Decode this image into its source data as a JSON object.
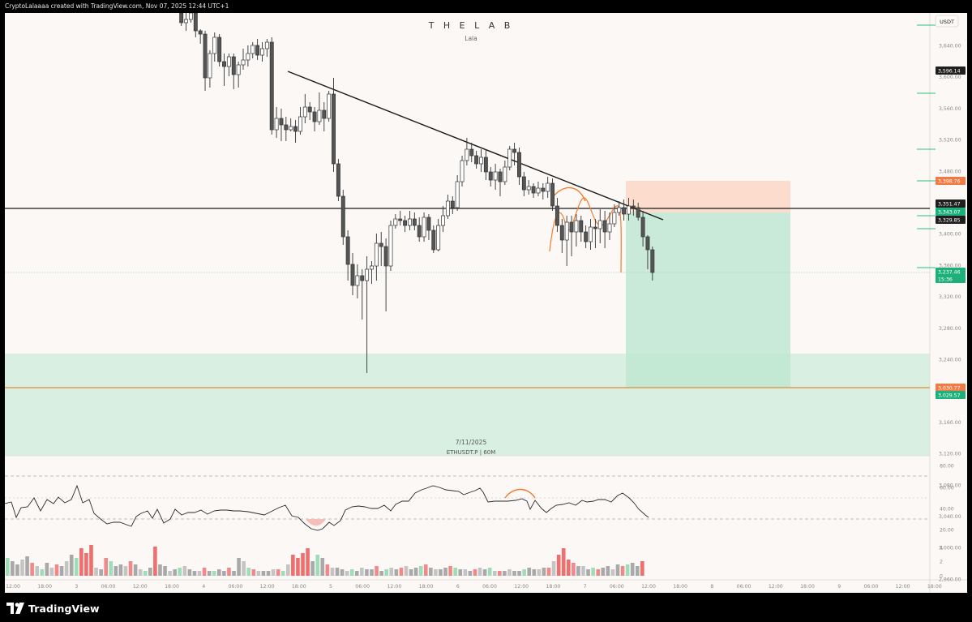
{
  "header": {
    "author_line": "CryptoLalaaaa created with TradingView.com, Nov 07, 2025 12:44 UTC+1"
  },
  "chart": {
    "watermark_title": "T H E  L A B",
    "watermark_sub": "Lala",
    "watermark_date": "7/11/2025",
    "watermark_symbol": "ETHUSDT.P | 60M",
    "currency": "USDT"
  },
  "price_axis": {
    "ticks": [
      "3,640.00",
      "3,600.00",
      "3,560.00",
      "3,520.00",
      "3,480.00",
      "3,440.00",
      "3,400.00",
      "3,360.00",
      "3,320.00",
      "3,280.00",
      "3,240.00",
      "3,200.00",
      "3,160.00",
      "3,120.00",
      "3,080.00",
      "3,040.00",
      "3,000.00",
      "2,960.00",
      "2,920.00"
    ],
    "labels": [
      {
        "text": "3,596.14",
        "color": "#1f1f1f"
      },
      {
        "text": "3,398.76",
        "color": "#f27a44"
      },
      {
        "text": "3,351.47",
        "color": "#1f1f1f"
      },
      {
        "text": "3,343.07",
        "color": "#1eb07a"
      },
      {
        "text": "3,329.85",
        "color": "#1f1f1f"
      },
      {
        "text": "3,237.46",
        "color": "#1eb07a"
      },
      {
        "text": "15:36",
        "color": "#1eb07a"
      },
      {
        "text": "3,030.77",
        "color": "#f27a44"
      },
      {
        "text": "3,029.57",
        "color": "#1eb07a"
      }
    ]
  },
  "rsi_axis": {
    "ticks": [
      "80.00",
      "60.00",
      "40.00",
      "20.00"
    ]
  },
  "volume_axis": {
    "ticks": [
      "4",
      "2",
      "0"
    ]
  },
  "time_axis": {
    "ticks": [
      "12:00",
      "18:00",
      "3",
      "06:00",
      "12:00",
      "18:00",
      "4",
      "06:00",
      "12:00",
      "18:00",
      "5",
      "06:00",
      "12:00",
      "18:00",
      "6",
      "06:00",
      "12:00",
      "18:00",
      "7",
      "06:00",
      "12:00",
      "18:00",
      "8",
      "06:00",
      "12:00",
      "18:00",
      "9",
      "06:00",
      "12:00",
      "18:00"
    ]
  },
  "footer": {
    "brand": "TradingView"
  },
  "colors": {
    "background": "#fbf8f5",
    "bull": "#ffffff",
    "bear": "#555555",
    "accent_green": "#1eb07a",
    "accent_orange": "#f27a44",
    "zone_green": "#cfeede",
    "stop_zone": "#fbd9c8"
  }
}
